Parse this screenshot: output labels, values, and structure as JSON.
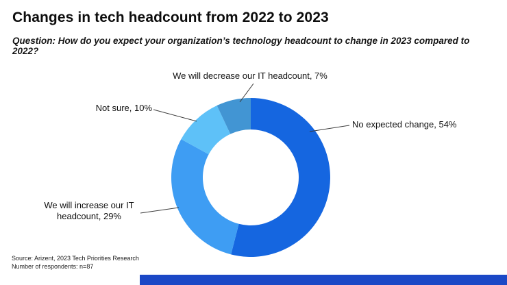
{
  "header": {
    "title": "Changes in tech headcount from 2022 to 2023",
    "subtitle": "Question: How do you expect your organization’s technology headcount to change in 2023 compared to 2022?"
  },
  "chart_data": {
    "type": "pie",
    "donut": true,
    "title": "Changes in tech headcount from 2022 to 2023",
    "labels": [
      "No expected change",
      "We will increase our IT headcount",
      "Not sure",
      "We will decrease our IT headcount"
    ],
    "values": [
      54,
      29,
      10,
      7
    ],
    "unit": "%",
    "colors": [
      "#1566e0",
      "#3e9df3",
      "#5ec1f8",
      "#4295d3"
    ],
    "legend_position": "callouts",
    "callouts": [
      {
        "text": "We will decrease our IT headcount, 7%"
      },
      {
        "text": "Not sure, 10%"
      },
      {
        "text": "No expected change, 54%"
      },
      {
        "text": "We will increase our IT headcount, 29%"
      }
    ]
  },
  "footer": {
    "source": "Source: Arizent, 2023 Tech Priorities Research",
    "respondents": "Number of respondents: n=87",
    "bar_color": "#1b48c6"
  }
}
